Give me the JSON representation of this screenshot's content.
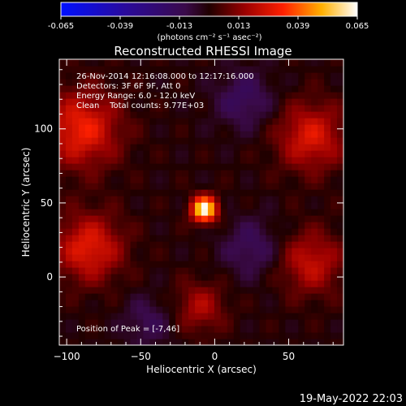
{
  "chart_data": {
    "type": "heatmap",
    "title": "Reconstructed RHESSI Image",
    "xlabel": "Heliocentric X (arcsec)",
    "ylabel": "Heliocentric Y (arcsec)",
    "xlim": [
      -105,
      87
    ],
    "ylim": [
      -46,
      147
    ],
    "xticks": [
      -100,
      -50,
      0,
      50
    ],
    "yticks": [
      0,
      50,
      100
    ],
    "colorbar": {
      "min": -0.065,
      "max": 0.065,
      "ticks": [
        "-0.065",
        "-0.039",
        "-0.013",
        "0.013",
        "0.039",
        "0.065"
      ],
      "units_label": "(photons cm⁻² s⁻¹ asec⁻²)"
    },
    "annotations": [
      "26-Nov-2014 12:16:08.000 to 12:17:16.000",
      "Detectors: 3F 6F 9F, Att 0",
      "Energy Range: 6.0 - 12.0 keV",
      "Clean    Total counts: 9.77E+03"
    ],
    "peak_label": "Position of Peak = [-7,46]",
    "peak": {
      "x": -7,
      "y": 46,
      "value": 0.065
    },
    "sources": [
      {
        "x": -7,
        "y": 46,
        "amplitude": 0.065,
        "sigma": 6
      },
      {
        "x": -90,
        "y": 100,
        "amplitude": 0.03,
        "sigma": 18
      },
      {
        "x": -85,
        "y": 20,
        "amplitude": 0.028,
        "sigma": 16
      },
      {
        "x": 65,
        "y": 95,
        "amplitude": 0.026,
        "sigma": 16
      },
      {
        "x": 65,
        "y": 10,
        "amplitude": 0.022,
        "sigma": 15
      },
      {
        "x": -10,
        "y": -20,
        "amplitude": 0.018,
        "sigma": 12
      },
      {
        "x": 20,
        "y": 120,
        "amplitude": -0.015,
        "sigma": 14
      },
      {
        "x": 25,
        "y": 20,
        "amplitude": -0.014,
        "sigma": 14
      },
      {
        "x": -45,
        "y": -30,
        "amplitude": -0.012,
        "sigma": 12
      }
    ]
  },
  "footer_timestamp": "19-May-2022 22:03"
}
